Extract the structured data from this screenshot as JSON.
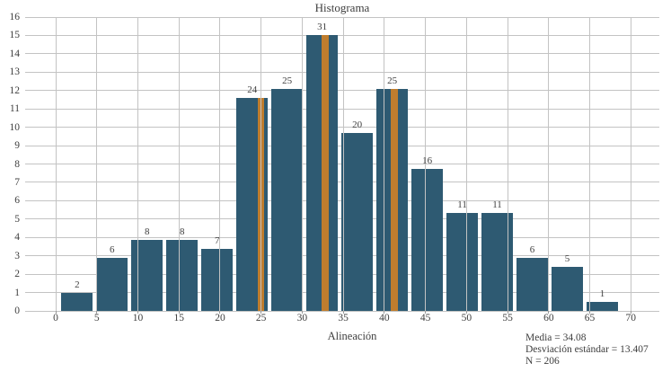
{
  "chart_data": {
    "type": "bar",
    "title": "Histograma",
    "xlabel": "Alineación",
    "ylabel": "",
    "legend": "none",
    "grid": true,
    "xlim": [
      -3.7,
      73.5
    ],
    "ylim": [
      0,
      16
    ],
    "x_ticks": [
      0,
      5,
      10,
      15,
      20,
      25,
      30,
      35,
      40,
      45,
      50,
      55,
      60,
      65,
      70
    ],
    "y_ticks": [
      0,
      1,
      2,
      3,
      4,
      5,
      6,
      7,
      8,
      9,
      10,
      11,
      12,
      13,
      14,
      15,
      16
    ],
    "counts": [
      2,
      6,
      8,
      8,
      7,
      24,
      25,
      31,
      20,
      25,
      16,
      11,
      11,
      6,
      5,
      1
    ],
    "bar_heights_y_units": [
      0.97,
      2.9,
      3.87,
      3.87,
      3.39,
      11.61,
      12.1,
      15.0,
      9.68,
      12.1,
      7.74,
      5.32,
      5.32,
      2.9,
      2.42,
      0.48
    ],
    "bin_start": 0.68,
    "bin_step": 4.261,
    "bar_width": 3.85,
    "bar_color": "#2e5a72",
    "markers": {
      "x_values": [
        25.0,
        32.8,
        41.2
      ],
      "width_units": 0.82,
      "color": "#bf7d2e"
    },
    "stats": {
      "media": "Media = 34.08",
      "desviacion": "Desviación estándar = 13.407",
      "n": "N = 206"
    }
  },
  "colors": {
    "bar": "#2e5a72",
    "marker": "#bf7d2e",
    "gridline": "#c3c3c3",
    "text": "#3e3e3e"
  }
}
